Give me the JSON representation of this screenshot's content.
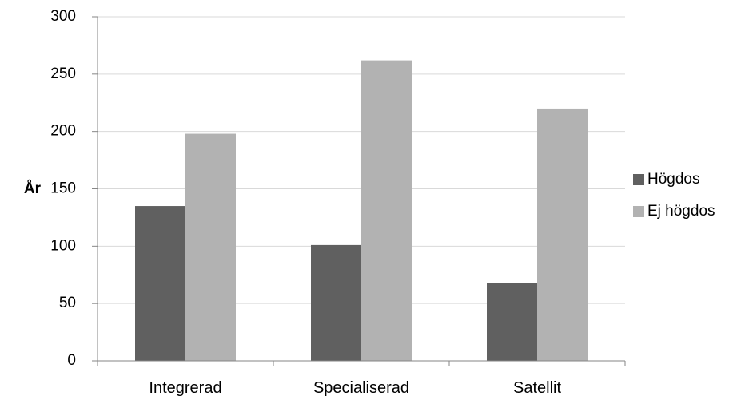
{
  "chart_data": {
    "type": "bar",
    "title": "",
    "xlabel": "",
    "ylabel": "År",
    "ylim": [
      0,
      300
    ],
    "yticks": [
      0,
      50,
      100,
      150,
      200,
      250,
      300
    ],
    "grid": true,
    "legend_position": "right",
    "categories": [
      "Integrerad",
      "Specialiserad",
      "Satellit"
    ],
    "series": [
      {
        "name": "Högdos",
        "color": "#606060",
        "values": [
          135,
          101,
          68
        ]
      },
      {
        "name": "Ej högdos",
        "color": "#b2b2b2",
        "values": [
          198,
          262,
          220
        ]
      }
    ]
  }
}
